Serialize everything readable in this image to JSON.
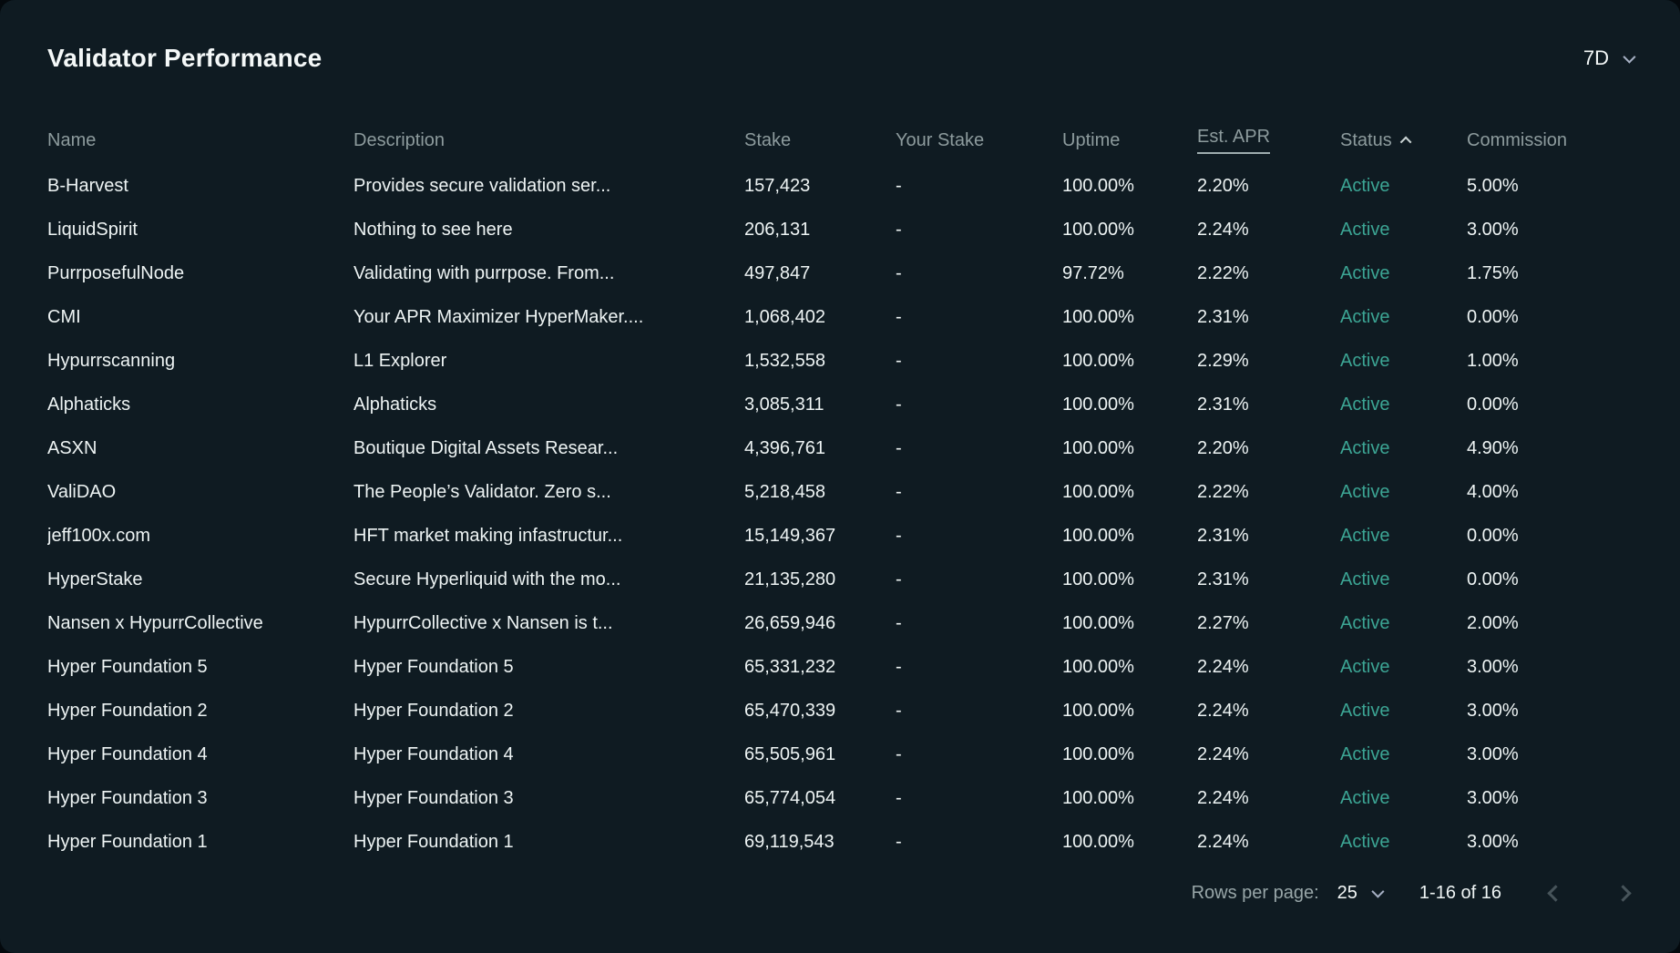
{
  "header": {
    "title": "Validator Performance",
    "period": {
      "value": "7D"
    }
  },
  "table": {
    "columns": [
      {
        "key": "name",
        "label": "Name"
      },
      {
        "key": "description",
        "label": "Description"
      },
      {
        "key": "stake",
        "label": "Stake"
      },
      {
        "key": "your_stake",
        "label": "Your Stake"
      },
      {
        "key": "uptime",
        "label": "Uptime"
      },
      {
        "key": "est_apr",
        "label": "Est. APR",
        "underlined": true
      },
      {
        "key": "status",
        "label": "Status",
        "sort": "asc"
      },
      {
        "key": "commission",
        "label": "Commission"
      }
    ],
    "rows": [
      {
        "name": "B-Harvest",
        "description": "Provides secure validation ser...",
        "stake": "157,423",
        "your_stake": "-",
        "uptime": "100.00%",
        "est_apr": "2.20%",
        "status": "Active",
        "commission": "5.00%"
      },
      {
        "name": "LiquidSpirit",
        "description": "Nothing to see here",
        "stake": "206,131",
        "your_stake": "-",
        "uptime": "100.00%",
        "est_apr": "2.24%",
        "status": "Active",
        "commission": "3.00%"
      },
      {
        "name": "PurrposefulNode",
        "description": "Validating with purrpose. From...",
        "stake": "497,847",
        "your_stake": "-",
        "uptime": "97.72%",
        "est_apr": "2.22%",
        "status": "Active",
        "commission": "1.75%"
      },
      {
        "name": "CMI",
        "description": "Your APR Maximizer HyperMaker....",
        "stake": "1,068,402",
        "your_stake": "-",
        "uptime": "100.00%",
        "est_apr": "2.31%",
        "status": "Active",
        "commission": "0.00%"
      },
      {
        "name": "Hypurrscanning",
        "description": "L1 Explorer",
        "stake": "1,532,558",
        "your_stake": "-",
        "uptime": "100.00%",
        "est_apr": "2.29%",
        "status": "Active",
        "commission": "1.00%"
      },
      {
        "name": "Alphaticks",
        "description": "Alphaticks",
        "stake": "3,085,311",
        "your_stake": "-",
        "uptime": "100.00%",
        "est_apr": "2.31%",
        "status": "Active",
        "commission": "0.00%"
      },
      {
        "name": "ASXN",
        "description": "Boutique Digital Assets Resear...",
        "stake": "4,396,761",
        "your_stake": "-",
        "uptime": "100.00%",
        "est_apr": "2.20%",
        "status": "Active",
        "commission": "4.90%"
      },
      {
        "name": "ValiDAO",
        "description": "The People’s Validator. Zero s...",
        "stake": "5,218,458",
        "your_stake": "-",
        "uptime": "100.00%",
        "est_apr": "2.22%",
        "status": "Active",
        "commission": "4.00%"
      },
      {
        "name": "jeff100x.com",
        "description": "HFT market making infastructur...",
        "stake": "15,149,367",
        "your_stake": "-",
        "uptime": "100.00%",
        "est_apr": "2.31%",
        "status": "Active",
        "commission": "0.00%"
      },
      {
        "name": "HyperStake",
        "description": "Secure Hyperliquid with the mo...",
        "stake": "21,135,280",
        "your_stake": "-",
        "uptime": "100.00%",
        "est_apr": "2.31%",
        "status": "Active",
        "commission": "0.00%"
      },
      {
        "name": "Nansen x HypurrCollective",
        "description": "HypurrCollective x Nansen is t...",
        "stake": "26,659,946",
        "your_stake": "-",
        "uptime": "100.00%",
        "est_apr": "2.27%",
        "status": "Active",
        "commission": "2.00%"
      },
      {
        "name": "Hyper Foundation 5",
        "description": "Hyper Foundation 5",
        "stake": "65,331,232",
        "your_stake": "-",
        "uptime": "100.00%",
        "est_apr": "2.24%",
        "status": "Active",
        "commission": "3.00%"
      },
      {
        "name": "Hyper Foundation 2",
        "description": "Hyper Foundation 2",
        "stake": "65,470,339",
        "your_stake": "-",
        "uptime": "100.00%",
        "est_apr": "2.24%",
        "status": "Active",
        "commission": "3.00%"
      },
      {
        "name": "Hyper Foundation 4",
        "description": "Hyper Foundation 4",
        "stake": "65,505,961",
        "your_stake": "-",
        "uptime": "100.00%",
        "est_apr": "2.24%",
        "status": "Active",
        "commission": "3.00%"
      },
      {
        "name": "Hyper Foundation 3",
        "description": "Hyper Foundation 3",
        "stake": "65,774,054",
        "your_stake": "-",
        "uptime": "100.00%",
        "est_apr": "2.24%",
        "status": "Active",
        "commission": "3.00%"
      },
      {
        "name": "Hyper Foundation 1",
        "description": "Hyper Foundation 1",
        "stake": "69,119,543",
        "your_stake": "-",
        "uptime": "100.00%",
        "est_apr": "2.24%",
        "status": "Active",
        "commission": "3.00%"
      }
    ]
  },
  "footer": {
    "rows_per_page_label": "Rows per page:",
    "rows_per_page_value": "25",
    "range_text": "1-16 of 16"
  },
  "colors": {
    "panel_bg": "#0f1b22",
    "status_active": "#3ca594",
    "header_text": "#8d9b9d",
    "row_text": "#eef4f4"
  }
}
